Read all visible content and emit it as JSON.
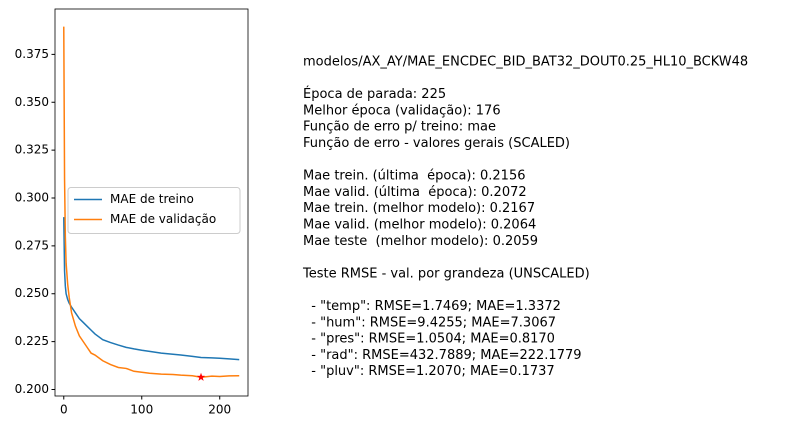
{
  "chart_data": {
    "type": "line",
    "x": [
      0,
      1,
      2,
      3,
      5,
      7,
      10,
      15,
      20,
      25,
      30,
      35,
      40,
      50,
      60,
      70,
      80,
      90,
      100,
      110,
      125,
      140,
      150,
      165,
      176,
      190,
      200,
      212,
      225
    ],
    "series": [
      {
        "name": "MAE de treino",
        "color": "#1f77b4",
        "values": [
          0.29,
          0.262,
          0.254,
          0.25,
          0.247,
          0.245,
          0.243,
          0.24,
          0.237,
          0.235,
          0.233,
          0.231,
          0.229,
          0.226,
          0.2245,
          0.2232,
          0.222,
          0.2212,
          0.2205,
          0.2199,
          0.219,
          0.2184,
          0.218,
          0.2173,
          0.2167,
          0.2165,
          0.2163,
          0.216,
          0.2156
        ]
      },
      {
        "name": "MAE de validação",
        "color": "#ff7f0e",
        "values": [
          0.3895,
          0.31,
          0.28,
          0.266,
          0.255,
          0.248,
          0.24,
          0.233,
          0.228,
          0.225,
          0.222,
          0.219,
          0.218,
          0.215,
          0.213,
          0.2115,
          0.211,
          0.2095,
          0.209,
          0.2085,
          0.208,
          0.2078,
          0.2075,
          0.2072,
          0.2064,
          0.207,
          0.2068,
          0.2071,
          0.2072
        ]
      }
    ],
    "best_point": {
      "x": 176,
      "y": 0.2064,
      "color": "#ff0000"
    },
    "xlim": [
      -11.25,
      236.25
    ],
    "xticks": [
      0,
      100,
      200
    ],
    "ylim": [
      0.1966,
      0.3987
    ],
    "yticks": [
      {
        "value": 0.2,
        "label": "0.200"
      },
      0.225,
      {
        "value": 0.25,
        "label": "0.250"
      },
      0.275,
      {
        "value": 0.3,
        "label": "0.300"
      },
      0.325,
      {
        "value": 0.35,
        "label": "0.350"
      },
      0.375
    ],
    "legend": "center left",
    "text_block": [
      [
        "modelos/AX_AY/MAE_ENCDEC_BID_BAT32_DOUT0.25_HL10_BCKW48"
      ],
      [
        "Época de parada: 225",
        "Melhor época (validação): 176",
        "Função de erro p/ treino: mae",
        "Função de erro - valores gerais (SCALED)"
      ],
      [
        "Mae trein. (última  época): 0.2156",
        "Mae valid. (última  época): 0.2072",
        "Mae trein. (melhor modelo): 0.2167",
        "Mae valid. (melhor modelo): 0.2064",
        "Mae teste  (melhor modelo): 0.2059"
      ],
      [
        "Teste RMSE - val. por grandeza (UNSCALED)"
      ],
      [
        "  - \"temp\": RMSE=1.7469; MAE=1.3372",
        "  - \"hum\": RMSE=9.4255; MAE=7.3067",
        "  - \"pres\": RMSE=1.0504; MAE=0.8170",
        "  - \"rad\": RMSE=432.7889; MAE=222.1779",
        "  - \"pluv\": RMSE=1.2070; MAE=0.1737"
      ]
    ]
  }
}
